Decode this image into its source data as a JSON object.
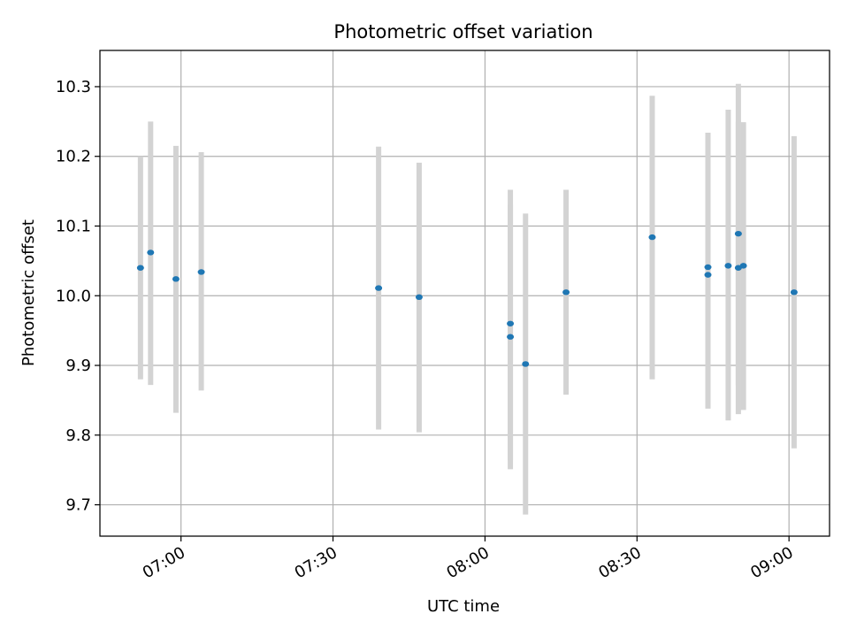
{
  "chart_data": {
    "type": "scatter",
    "title": "Photometric offset variation",
    "xlabel": "UTC time",
    "ylabel": "Photometric offset",
    "x_scale": "time",
    "xlim": [
      "06:44",
      "09:08"
    ],
    "ylim": [
      9.655,
      10.352
    ],
    "grid": true,
    "x_ticks": [
      "07:00",
      "07:30",
      "08:00",
      "08:30",
      "09:00"
    ],
    "y_ticks": [
      "9.7",
      "9.8",
      "9.9",
      "10.0",
      "10.1",
      "10.2",
      "10.3"
    ],
    "colors": {
      "point": "#1f77b4",
      "error_bar": "#d3d3d3",
      "grid": "#b0b0b0"
    },
    "series": [
      {
        "points": [
          {
            "x": "06:52",
            "y": 10.04,
            "ylow": 9.88,
            "yhigh": 10.2
          },
          {
            "x": "06:54",
            "y": 10.062,
            "ylow": 9.872,
            "yhigh": 10.25
          },
          {
            "x": "06:59",
            "y": 10.024,
            "ylow": 9.832,
            "yhigh": 10.215
          },
          {
            "x": "07:04",
            "y": 10.034,
            "ylow": 9.864,
            "yhigh": 10.206
          },
          {
            "x": "07:39",
            "y": 10.011,
            "ylow": 9.808,
            "yhigh": 10.214
          },
          {
            "x": "07:47",
            "y": 9.998,
            "ylow": 9.804,
            "yhigh": 10.191
          },
          {
            "x": "08:05",
            "y": 9.96,
            "ylow": 9.764,
            "yhigh": 10.152
          },
          {
            "x": "08:05",
            "y": 9.941,
            "ylow": 9.751,
            "yhigh": 10.131
          },
          {
            "x": "08:08",
            "y": 9.902,
            "ylow": 9.686,
            "yhigh": 10.118
          },
          {
            "x": "08:16",
            "y": 10.005,
            "ylow": 9.858,
            "yhigh": 10.152
          },
          {
            "x": "08:33",
            "y": 10.084,
            "ylow": 9.88,
            "yhigh": 10.287
          },
          {
            "x": "08:44",
            "y": 10.03,
            "ylow": 9.838,
            "yhigh": 10.225
          },
          {
            "x": "08:44",
            "y": 10.041,
            "ylow": 9.846,
            "yhigh": 10.234
          },
          {
            "x": "08:48",
            "y": 10.043,
            "ylow": 9.821,
            "yhigh": 10.267
          },
          {
            "x": "08:50",
            "y": 10.089,
            "ylow": 9.872,
            "yhigh": 10.304
          },
          {
            "x": "08:50",
            "y": 10.04,
            "ylow": 9.83,
            "yhigh": 10.25
          },
          {
            "x": "08:51",
            "y": 10.043,
            "ylow": 9.836,
            "yhigh": 10.249
          },
          {
            "x": "09:01",
            "y": 10.005,
            "ylow": 9.781,
            "yhigh": 10.229
          }
        ]
      }
    ]
  }
}
